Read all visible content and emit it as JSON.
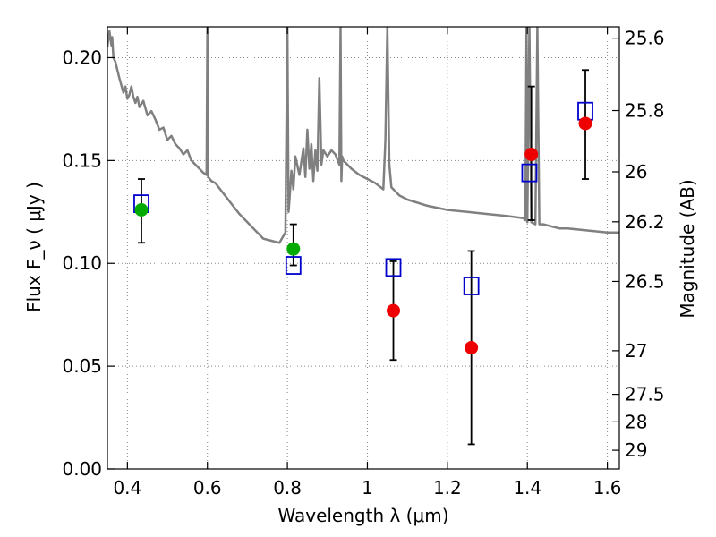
{
  "chart_data": {
    "type": "scatter",
    "title": "",
    "xlabel": "Wavelength  λ (μm)",
    "ylabel": "Flux  F_ν  ( μJy )",
    "y2label": "Magnitude (AB)",
    "xlim": [
      0.35,
      1.63
    ],
    "ylim": [
      0.0,
      0.215
    ],
    "grid": true,
    "grid_style": "dotted",
    "x_ticks": [
      0.4,
      0.6,
      0.8,
      1.0,
      1.2,
      1.4,
      1.6
    ],
    "x_tick_labels": [
      "0.4",
      "0.6",
      "0.8",
      "1",
      "1.2",
      "1.4",
      "1.6"
    ],
    "y_ticks": [
      0.0,
      0.05,
      0.1,
      0.15,
      0.2
    ],
    "y_tick_labels": [
      "0.00",
      "0.05",
      "0.10",
      "0.15",
      "0.20"
    ],
    "y2_ticks": [
      {
        "label": "25.6",
        "flux": 0.2095
      },
      {
        "label": "25.8",
        "flux": 0.1743
      },
      {
        "label": "26",
        "flux": 0.1445
      },
      {
        "label": "26.2",
        "flux": 0.1202
      },
      {
        "label": "26.5",
        "flux": 0.0912
      },
      {
        "label": "27",
        "flux": 0.0575
      },
      {
        "label": "27.5",
        "flux": 0.0363
      },
      {
        "label": "28",
        "flux": 0.0229
      },
      {
        "label": "29",
        "flux": 0.0091
      }
    ],
    "colors": {
      "model": "#808080",
      "model_flux": "#0000cc",
      "detected": "#00aa00",
      "observed": "#ee0000",
      "errorbar": "#000000",
      "grid": "#888888"
    },
    "series": [
      {
        "kind": "line",
        "x": [
          0.35,
          0.355,
          0.36,
          0.362,
          0.365,
          0.37,
          0.38,
          0.39,
          0.395,
          0.4,
          0.405,
          0.41,
          0.415,
          0.42,
          0.425,
          0.43,
          0.44,
          0.45,
          0.46,
          0.47,
          0.48,
          0.49,
          0.5,
          0.51,
          0.52,
          0.53,
          0.54,
          0.55,
          0.56,
          0.57,
          0.58,
          0.59,
          0.598,
          0.6,
          0.602,
          0.61,
          0.62,
          0.64,
          0.66,
          0.68,
          0.7,
          0.72,
          0.74,
          0.76,
          0.78,
          0.795,
          0.8,
          0.803,
          0.805,
          0.81,
          0.815,
          0.82,
          0.83,
          0.84,
          0.845,
          0.85,
          0.855,
          0.86,
          0.865,
          0.87,
          0.875,
          0.88,
          0.885,
          0.89,
          0.9,
          0.91,
          0.92,
          0.93,
          0.933,
          0.935,
          0.937,
          0.94,
          0.95,
          0.96,
          0.98,
          1.0,
          1.02,
          1.04,
          1.045,
          1.05,
          1.055,
          1.06,
          1.08,
          1.1,
          1.15,
          1.2,
          1.25,
          1.3,
          1.35,
          1.39,
          1.395,
          1.398,
          1.4,
          1.405,
          1.41,
          1.42,
          1.425,
          1.43,
          1.44,
          1.46,
          1.48,
          1.5,
          1.55,
          1.6,
          1.63
        ],
        "y": [
          0.205,
          0.213,
          0.206,
          0.21,
          0.2,
          0.198,
          0.19,
          0.183,
          0.186,
          0.18,
          0.182,
          0.186,
          0.181,
          0.178,
          0.181,
          0.176,
          0.179,
          0.172,
          0.174,
          0.17,
          0.165,
          0.166,
          0.16,
          0.162,
          0.158,
          0.156,
          0.153,
          0.155,
          0.15,
          0.148,
          0.146,
          0.144,
          0.143,
          0.215,
          0.142,
          0.14,
          0.139,
          0.134,
          0.129,
          0.124,
          0.12,
          0.116,
          0.112,
          0.111,
          0.11,
          0.115,
          0.215,
          0.125,
          0.13,
          0.145,
          0.136,
          0.152,
          0.143,
          0.156,
          0.142,
          0.165,
          0.146,
          0.158,
          0.14,
          0.155,
          0.145,
          0.19,
          0.148,
          0.155,
          0.152,
          0.155,
          0.153,
          0.148,
          0.215,
          0.14,
          0.152,
          0.15,
          0.148,
          0.146,
          0.143,
          0.141,
          0.139,
          0.136,
          0.16,
          0.215,
          0.148,
          0.137,
          0.133,
          0.131,
          0.128,
          0.126,
          0.125,
          0.124,
          0.123,
          0.122,
          0.121,
          0.215,
          0.12,
          0.215,
          0.12,
          0.119,
          0.215,
          0.119,
          0.119,
          0.118,
          0.117,
          0.117,
          0.116,
          0.115,
          0.115
        ]
      },
      {
        "kind": "model-photometry",
        "name": "",
        "marker": "open-square",
        "x": [
          0.435,
          0.815,
          1.065,
          1.26,
          1.405,
          1.545
        ],
        "y": [
          0.129,
          0.099,
          0.098,
          0.089,
          0.144,
          0.174
        ]
      },
      {
        "kind": "observed",
        "marker": "filled-circle",
        "points": [
          {
            "x": 0.435,
            "y": 0.126,
            "yerr_low": 0.11,
            "yerr_high": 0.141,
            "color": "detected"
          },
          {
            "x": 0.815,
            "y": 0.107,
            "yerr_low": 0.099,
            "yerr_high": 0.119,
            "color": "detected"
          },
          {
            "x": 1.065,
            "y": 0.077,
            "yerr_low": 0.053,
            "yerr_high": 0.101,
            "color": "observed"
          },
          {
            "x": 1.26,
            "y": 0.059,
            "yerr_low": 0.012,
            "yerr_high": 0.106,
            "color": "observed"
          },
          {
            "x": 1.41,
            "y": 0.153,
            "yerr_low": 0.121,
            "yerr_high": 0.186,
            "color": "observed"
          },
          {
            "x": 1.545,
            "y": 0.168,
            "yerr_low": 0.141,
            "yerr_high": 0.194,
            "color": "observed"
          }
        ]
      }
    ]
  }
}
